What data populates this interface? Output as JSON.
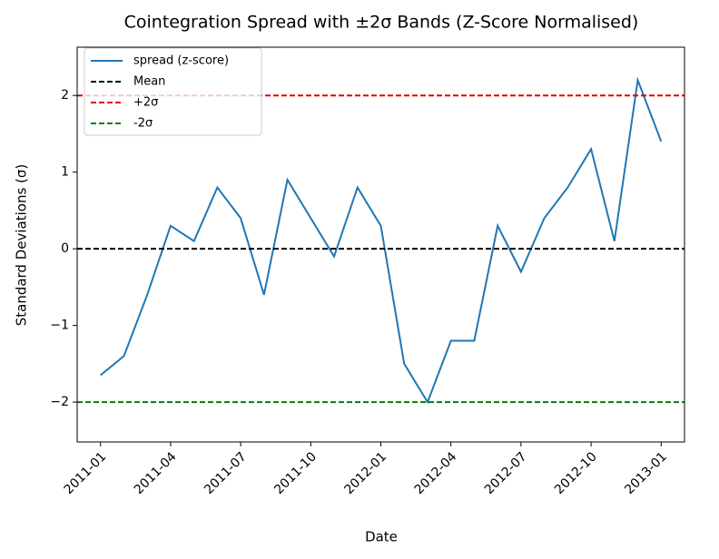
{
  "chart_data": {
    "type": "line",
    "title": "Cointegration Spread with ±2σ Bands (Z-Score Normalised)",
    "xlabel": "Date",
    "ylabel": "Standard Deviations (σ)",
    "x": [
      "2011-01",
      "2011-02",
      "2011-03",
      "2011-04",
      "2011-05",
      "2011-06",
      "2011-07",
      "2011-08",
      "2011-09",
      "2011-10",
      "2011-11",
      "2011-12",
      "2012-01",
      "2012-02",
      "2012-03",
      "2012-04",
      "2012-05",
      "2012-06",
      "2012-07",
      "2012-08",
      "2012-09",
      "2012-10",
      "2012-11",
      "2012-12",
      "2013-01"
    ],
    "series": [
      {
        "name": "spread (z-score)",
        "color": "#1f77b4",
        "values": [
          -1.65,
          -1.4,
          -0.6,
          0.3,
          0.1,
          0.8,
          0.4,
          -0.6,
          0.9,
          0.4,
          -0.1,
          0.8,
          0.3,
          -1.5,
          -2.0,
          -1.2,
          -1.2,
          0.3,
          -0.3,
          0.4,
          0.8,
          1.3,
          0.1,
          2.2,
          1.4
        ]
      }
    ],
    "hlines": [
      {
        "name": "Mean",
        "value": 0,
        "color": "#000000"
      },
      {
        "name": "+2σ",
        "value": 2,
        "color": "#e00000"
      },
      {
        "name": "-2σ",
        "value": -2,
        "color": "#008000"
      }
    ],
    "xlim": [
      "2010-12",
      "2013-02"
    ],
    "xticks": [
      "2011-01",
      "2011-04",
      "2011-07",
      "2011-10",
      "2012-01",
      "2012-04",
      "2012-07",
      "2012-10",
      "2013-01"
    ],
    "ylim": [
      -2.52,
      2.63
    ],
    "yticks": [
      {
        "value": -2,
        "label": "−2"
      },
      {
        "value": -1,
        "label": "−1"
      },
      0,
      1,
      2
    ],
    "legend": "upper left"
  }
}
